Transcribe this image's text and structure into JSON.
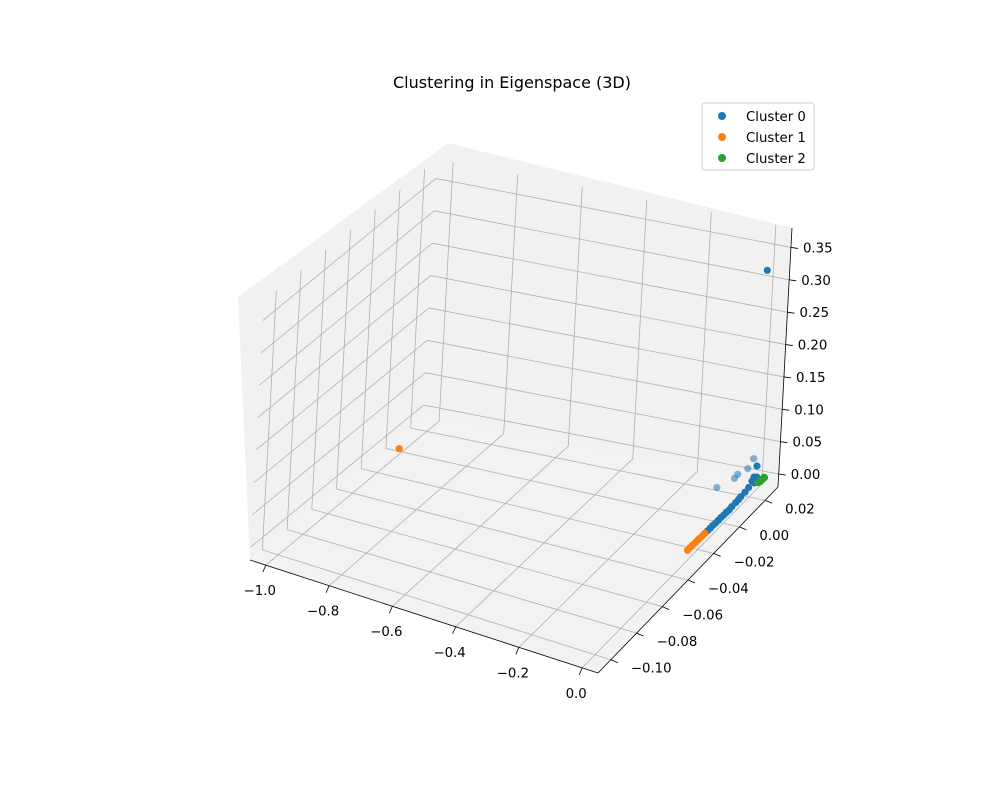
{
  "chart_data": {
    "type": "scatter",
    "projection": "3d",
    "title": "Clustering in Eigenspace (3D)",
    "xlabel": "",
    "ylabel": "",
    "zlabel": "",
    "xlim": [
      -1.05,
      0.05
    ],
    "ylim": [
      -0.11,
      0.03
    ],
    "zlim": [
      -0.02,
      0.38
    ],
    "x_ticks": [
      "−1.0",
      "−0.8",
      "−0.6",
      "−0.4",
      "−0.2",
      "0.0"
    ],
    "y_ticks": [
      "−0.10",
      "−0.08",
      "−0.06",
      "−0.04",
      "−0.02",
      "0.00",
      "0.02"
    ],
    "z_ticks": [
      "0.00",
      "0.05",
      "0.10",
      "0.15",
      "0.20",
      "0.25",
      "0.30",
      "0.35"
    ],
    "grid": true,
    "legend_position": "upper-right",
    "series": [
      {
        "name": "Cluster 0",
        "color": "#1f77b4",
        "points": [
          [
            0.0,
            0.025,
            0.32
          ],
          [
            0.004,
            -0.008,
            0.052
          ],
          [
            0.006,
            0.008,
            0.04
          ],
          [
            0.008,
            0.005,
            0.04
          ],
          [
            0.01,
            0.015,
            0.035
          ],
          [
            0.008,
            0.02,
            0.04
          ],
          [
            0.012,
            0.022,
            0.025
          ],
          [
            0.012,
            0.02,
            0.012
          ],
          [
            0.014,
            0.018,
            0.01
          ],
          [
            0.013,
            0.022,
            0.008
          ],
          [
            0.012,
            0.019,
            0.007
          ],
          [
            0.013,
            0.021,
            0.005
          ],
          [
            0.012,
            0.016,
            0.004
          ],
          [
            0.014,
            0.02,
            0.003
          ],
          [
            0.013,
            0.013,
            0.003
          ],
          [
            0.012,
            0.01,
            0.002
          ],
          [
            0.013,
            0.008,
            0.002
          ],
          [
            0.012,
            0.006,
            0.001
          ],
          [
            0.012,
            0.003,
            0.001
          ],
          [
            0.012,
            0.001,
            0.0
          ],
          [
            0.011,
            -0.001,
            0.0
          ],
          [
            0.011,
            -0.003,
            0.0
          ],
          [
            0.01,
            -0.005,
            0.0
          ],
          [
            0.01,
            -0.007,
            0.0
          ],
          [
            0.01,
            -0.009,
            0.0
          ],
          [
            0.009,
            -0.011,
            0.0
          ],
          [
            0.009,
            -0.013,
            0.0
          ],
          [
            0.009,
            -0.015,
            0.0
          ]
        ]
      },
      {
        "name": "Cluster 1",
        "color": "#ff7f0e",
        "points": [
          [
            -0.98,
            -0.008,
            0.0
          ],
          [
            0.008,
            -0.017,
            0.0
          ],
          [
            0.008,
            -0.019,
            0.0
          ],
          [
            0.007,
            -0.021,
            0.0
          ],
          [
            0.007,
            -0.022,
            0.0
          ],
          [
            0.007,
            -0.024,
            0.0
          ],
          [
            0.006,
            -0.026,
            0.0
          ],
          [
            0.006,
            -0.028,
            0.0
          ],
          [
            0.006,
            -0.03,
            0.0
          ]
        ]
      },
      {
        "name": "Cluster 2",
        "color": "#2ca02c",
        "points": [
          [
            0.018,
            0.022,
            0.0
          ],
          [
            0.019,
            0.023,
            0.0
          ],
          [
            0.02,
            0.024,
            0.0
          ],
          [
            0.021,
            0.025,
            0.0
          ],
          [
            0.022,
            0.026,
            0.0
          ],
          [
            0.02,
            0.026,
            0.0
          ],
          [
            0.021,
            0.023,
            0.0
          ]
        ]
      }
    ]
  }
}
